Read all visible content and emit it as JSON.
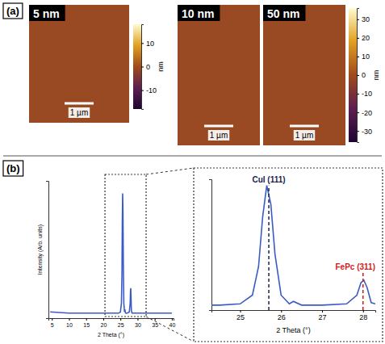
{
  "chart_data": [
    {
      "type": "image",
      "panel_label": "(a)",
      "images": [
        {
          "title": "5 nm",
          "scale_bar": "1 µm",
          "colorbar": {
            "range": [
              -18,
              18
            ],
            "ticks": [
              -10,
              0,
              10
            ],
            "label": "nm"
          }
        },
        {
          "title": "10 nm",
          "scale_bar": "1 µm"
        },
        {
          "title": "50 nm",
          "scale_bar": "1 µm",
          "colorbar": {
            "range": [
              -36,
              36
            ],
            "ticks": [
              -30,
              -20,
              -10,
              0,
              10,
              20,
              30
            ],
            "label": "nm"
          }
        }
      ]
    },
    {
      "type": "line",
      "panel_label": "(b)",
      "x_label": "2 Theta (°)",
      "y_label": "Intensity (Arb. units)",
      "xlim": [
        4,
        40.5
      ],
      "xticks": [
        5,
        10,
        15,
        20,
        25,
        30,
        35,
        40
      ],
      "ylim": [
        0,
        1.1
      ],
      "tick_labels": "x",
      "zoom_range": [
        20.5,
        32.5
      ],
      "series": [
        {
          "color": "#3b5bc4",
          "x": [
            4.5,
            10,
            15,
            20,
            23,
            24.5,
            25.0,
            25.3,
            25.45,
            25.55,
            25.65,
            25.75,
            25.85,
            26.0,
            26.2,
            26.3,
            26.5,
            27.0,
            27.6,
            27.85,
            27.95,
            28.02,
            28.1,
            28.2,
            28.4,
            29,
            32,
            35,
            40
          ],
          "values": [
            0.05,
            0.04,
            0.04,
            0.04,
            0.04,
            0.04,
            0.05,
            0.12,
            0.35,
            0.75,
            1.0,
            0.85,
            0.45,
            0.12,
            0.05,
            0.07,
            0.04,
            0.04,
            0.05,
            0.12,
            0.22,
            0.24,
            0.18,
            0.06,
            0.04,
            0.04,
            0.04,
            0.04,
            0.04
          ]
        }
      ]
    },
    {
      "type": "line",
      "x_label": "2 Theta (°)",
      "xlim": [
        24.3,
        28.3
      ],
      "xticks": [
        25,
        26,
        27,
        28
      ],
      "ylim": [
        0,
        1.05
      ],
      "tick_labels": "x",
      "series": [
        {
          "color": "#3b5bc4",
          "x": [
            4.5,
            10,
            15,
            20,
            23,
            24.5,
            25.0,
            25.3,
            25.45,
            25.55,
            25.65,
            25.75,
            25.85,
            26.0,
            26.2,
            26.3,
            26.5,
            27.0,
            27.6,
            27.85,
            27.95,
            28.02,
            28.1,
            28.2,
            28.4,
            29,
            32,
            35,
            40
          ],
          "values": [
            0.05,
            0.04,
            0.04,
            0.04,
            0.04,
            0.04,
            0.05,
            0.12,
            0.35,
            0.75,
            1.0,
            0.85,
            0.45,
            0.12,
            0.05,
            0.07,
            0.04,
            0.04,
            0.05,
            0.12,
            0.22,
            0.24,
            0.18,
            0.06,
            0.04,
            0.04,
            0.04,
            0.04,
            0.04
          ]
        }
      ],
      "annotations": [
        {
          "text": "CuI (111)",
          "x": 25.7,
          "y": 1.0,
          "color": "#1c2450"
        },
        {
          "text": "FePc (311)",
          "x": 28.0,
          "y": 0.3,
          "color": "#d01c1c"
        }
      ]
    }
  ]
}
